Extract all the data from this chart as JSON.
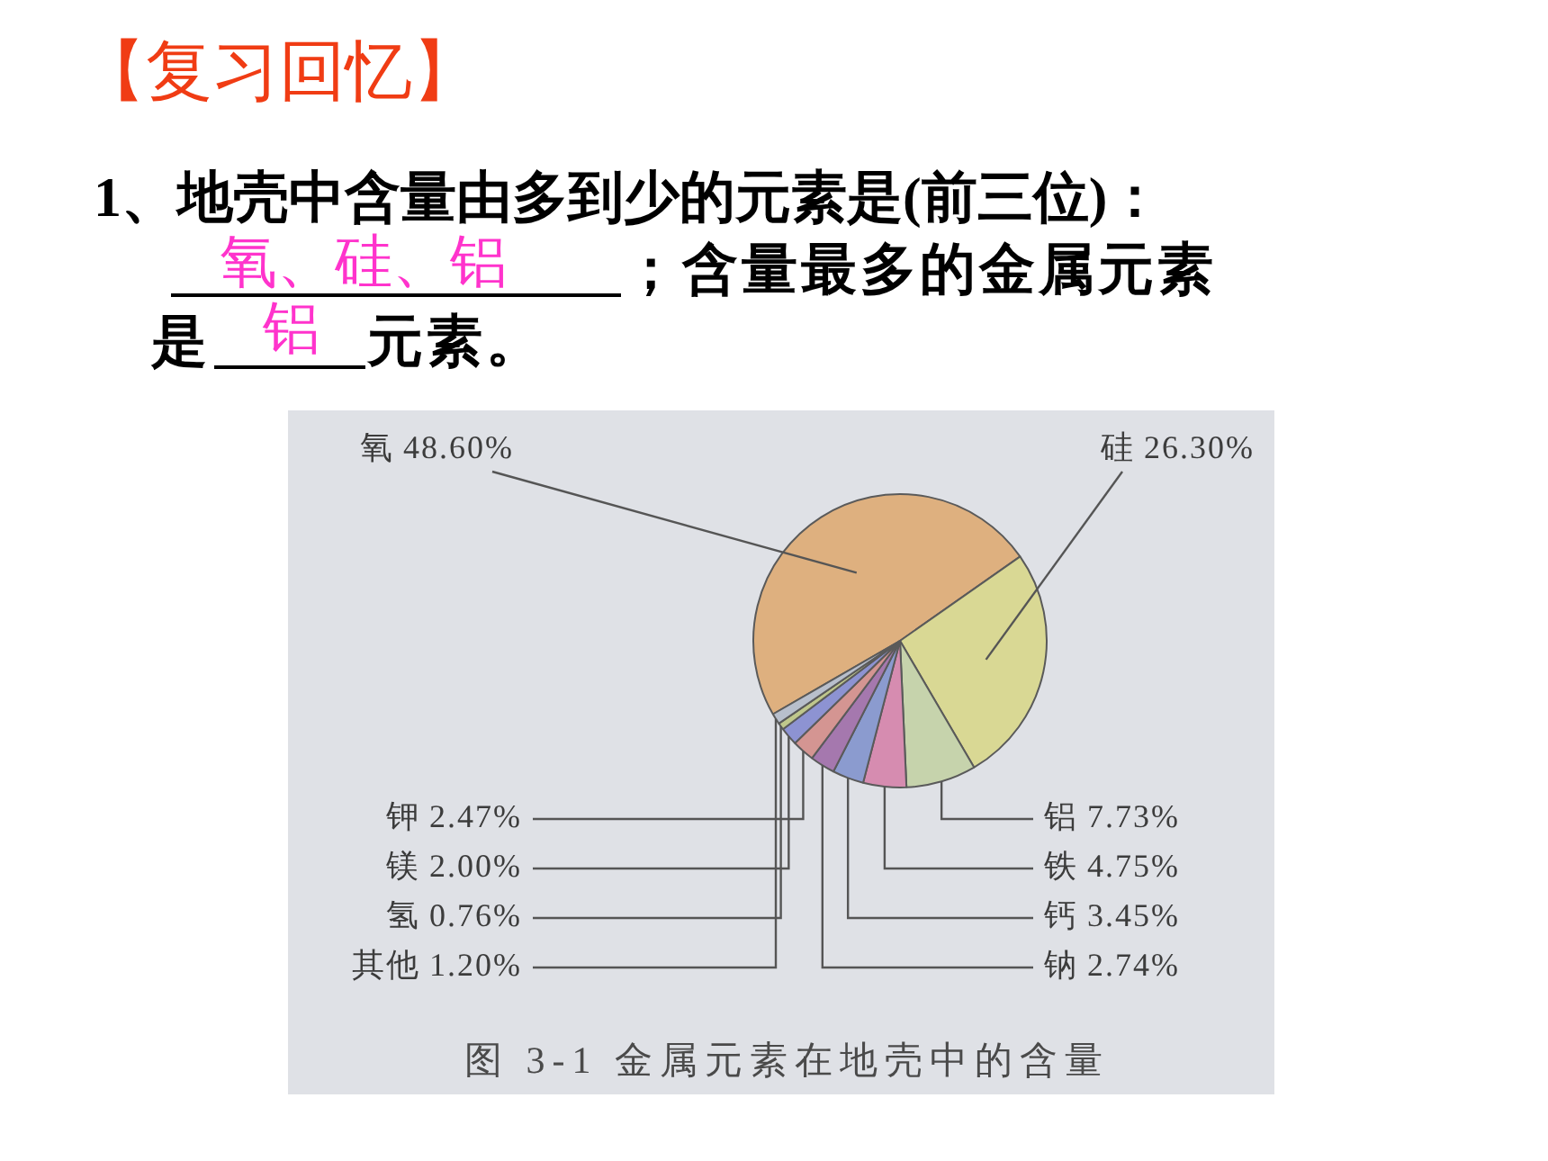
{
  "chart_data": {
    "type": "pie",
    "title": "【复习回忆】",
    "categories": [
      "氧",
      "硅",
      "铝",
      "铁",
      "钙",
      "钠",
      "钾",
      "镁",
      "氢",
      "其他"
    ],
    "values": [
      48.6,
      26.3,
      7.73,
      4.75,
      3.45,
      2.74,
      2.47,
      2.0,
      0.76,
      1.2
    ],
    "colors": [
      "#deb07f",
      "#d9d894",
      "#c6d3ac",
      "#d68cb0",
      "#8b9bcf",
      "#a578ae",
      "#d49592",
      "#8d93d2",
      "#bfc78c",
      "#b8bfcc"
    ],
    "value_labels": [
      "48.60%",
      "26.30%",
      "7.73%",
      "4.75%",
      "3.45%",
      "2.74%",
      "2.47%",
      "2.00%",
      "0.76%",
      "1.20%"
    ],
    "legend": false,
    "annotations": [
      "1、地壳中含量由多到少的元素是(前三位)：",
      "；含量最多的金属元素",
      "是",
      "元素。",
      "氧、硅、铝",
      "铝",
      "图 3-1   金属元素在地壳中的含量"
    ]
  }
}
